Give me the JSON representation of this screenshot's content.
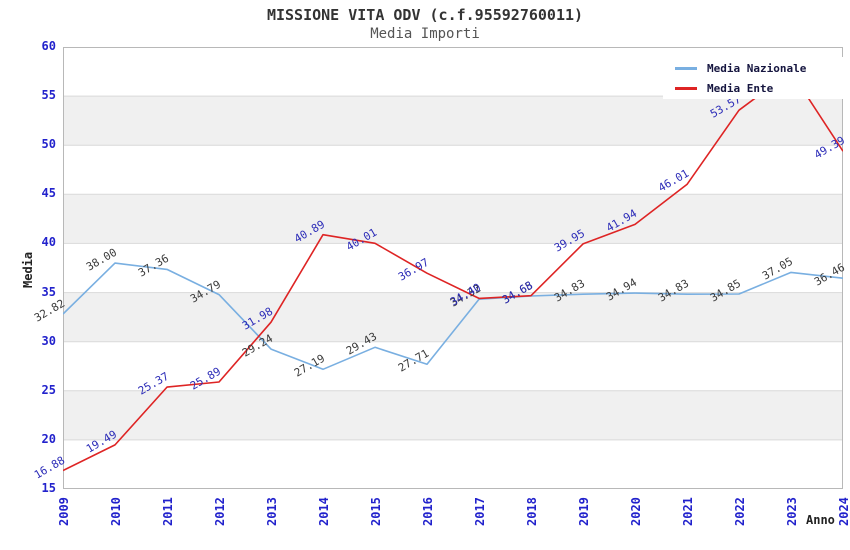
{
  "title": "MISSIONE VITA ODV (c.f.95592760011)",
  "subtitle": "Media Importi",
  "chart_data": {
    "type": "line",
    "x": [
      "2009",
      "2010",
      "2011",
      "2012",
      "2013",
      "2014",
      "2015",
      "2016",
      "2017",
      "2018",
      "2019",
      "2020",
      "2021",
      "2022",
      "2023",
      "2024"
    ],
    "xlabel": "Anno",
    "ylabel": "Media",
    "ylim": [
      15,
      60
    ],
    "ytick_step": 5,
    "yticks": [
      15,
      20,
      25,
      30,
      35,
      40,
      45,
      50,
      55,
      60
    ],
    "grid": "horizontal",
    "shaded_bands": [
      [
        20,
        25
      ],
      [
        30,
        35
      ],
      [
        40,
        45
      ],
      [
        50,
        55
      ]
    ],
    "legend_position": "top-right",
    "series": [
      {
        "name": "Media Nazionale",
        "color": "#79afe1",
        "label_color": "#3b3b3b",
        "values": [
          32.82,
          38.0,
          37.36,
          34.79,
          29.24,
          27.19,
          29.43,
          27.71,
          34.32,
          34.65,
          34.83,
          34.94,
          34.83,
          34.85,
          37.05,
          36.46
        ]
      },
      {
        "name": "Media Ente",
        "color": "#de2424",
        "label_color": "#2d2db8",
        "values": [
          16.88,
          19.49,
          25.37,
          25.89,
          31.98,
          40.89,
          40.01,
          36.97,
          34.4,
          34.68,
          39.95,
          41.94,
          46.01,
          53.57,
          57.5,
          49.39
        ]
      }
    ],
    "style": {
      "band_fill": "#f0f0f0",
      "gridline_color": "#d9d9d9",
      "border_color": "#b8b8b8",
      "tick_label_color": "#2222cc"
    }
  }
}
